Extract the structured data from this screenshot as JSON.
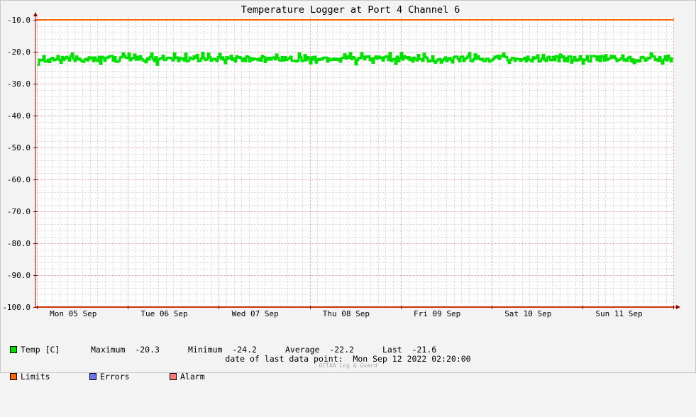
{
  "chart_data": {
    "type": "line",
    "title": "Temperature Logger at Port 4 Channel 6",
    "ylim": [
      -100,
      -10
    ],
    "yticks": [
      "-10.0",
      "-20.0",
      "-30.0",
      "-40.0",
      "-50.0",
      "-60.0",
      "-70.0",
      "-80.0",
      "-90.0",
      "-100.0"
    ],
    "ytick_values": [
      -10,
      -20,
      -30,
      -40,
      -50,
      -60,
      -70,
      -80,
      -90,
      -100
    ],
    "xlabels": [
      "Mon 05 Sep",
      "Tue 06 Sep",
      "Wed 07 Sep",
      "Thu 08 Sep",
      "Fri 09 Sep",
      "Sat 10 Sep",
      "Sun 11 Sep"
    ],
    "grid": true,
    "series": [
      {
        "name": "Temp [C]",
        "color": "#00e000",
        "summary": {
          "maximum": -20.3,
          "minimum": -24.2,
          "average": -22.2,
          "last": -21.6
        },
        "band": [
          -24.2,
          -20.3
        ]
      },
      {
        "name": "Limits",
        "color": "#ff6600",
        "values": [
          -10.0,
          -100.0
        ]
      },
      {
        "name": "Errors",
        "color": "#6677ff"
      },
      {
        "name": "Alarm",
        "color": "#ff7777"
      }
    ]
  },
  "legend": {
    "temp": {
      "label": "Temp [C]",
      "max_label": "Maximum",
      "max": "-20.3",
      "min_label": "Minimum",
      "min": "-24.2",
      "avg_label": "Average",
      "avg": "-22.2",
      "last_label": "Last",
      "last": "-21.6"
    },
    "limits": "Limits",
    "errors": "Errors",
    "alarm": "Alarm"
  },
  "footer": {
    "label": "date of last data point:",
    "value": "Mon Sep 12 2022 02:20:00",
    "credit": "OCTAA Log & Guard"
  },
  "colors": {
    "background": "#f3f3f3",
    "plot": "#ffffff",
    "axis": "#990000",
    "grid_major": "#e8a0a0",
    "grid_minor": "#d8d8d8"
  }
}
